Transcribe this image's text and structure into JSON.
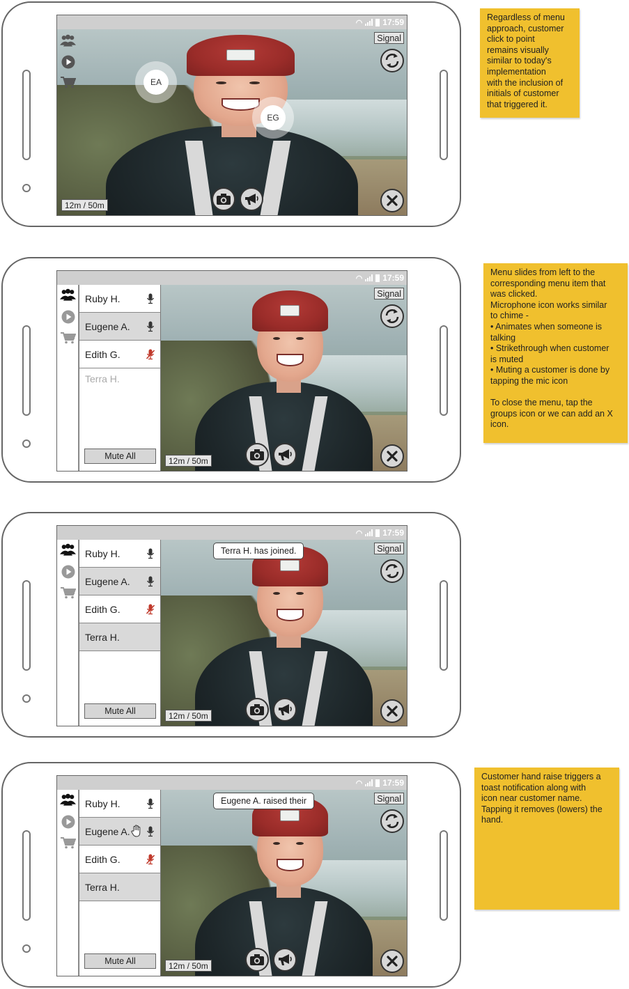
{
  "status_time": "17:59",
  "signal_label": "Signal",
  "timer_label": "12m / 50m",
  "mute_all_label": "Mute All",
  "icons": {
    "groups": "groups-icon",
    "play": "play-icon",
    "cart": "cart-icon",
    "refresh": "refresh-icon",
    "close": "close-icon",
    "camera": "camera-icon",
    "megaphone": "megaphone-icon",
    "mic": "microphone-icon",
    "mic_muted": "microphone-muted-icon",
    "hand": "hand-raise-icon"
  },
  "frame1": {
    "bubbles": [
      "EA",
      "EG"
    ]
  },
  "frame2": {
    "participants": [
      {
        "name": "Ruby H."
      },
      {
        "name": "Eugene A."
      },
      {
        "name": "Edith G."
      },
      {
        "name": "Terra H."
      }
    ]
  },
  "frame3": {
    "toast": "Terra H. has joined.",
    "participants": [
      {
        "name": "Ruby H."
      },
      {
        "name": "Eugene A."
      },
      {
        "name": "Edith G."
      },
      {
        "name": "Terra H."
      }
    ]
  },
  "frame4": {
    "toast": "Eugene A. raised their",
    "participants": [
      {
        "name": "Ruby H."
      },
      {
        "name": "Eugene A."
      },
      {
        "name": "Edith G."
      },
      {
        "name": "Terra H."
      }
    ]
  },
  "notes": {
    "note1": "Regardless of menu\napproach, customer\nclick to point\nremains visually\nsimilar to today's\nimplementation\nwith the inclusion of\ninitials of customer\nthat triggered it.",
    "note2": "Menu slides from left to the\ncorresponding menu item that\nwas clicked.\nMicrophone icon works similar\nto chime -\n• Animates when someone is\ntalking\n• Strikethrough when customer\nis muted\n• Muting a customer is done by\ntapping the mic icon\n\nTo close the menu, tap the\ngroups icon or we can add an X\nicon.",
    "note3": "Customer hand raise triggers a\ntoast notification along with\nicon near customer name.\nTapping it removes (lowers) the\nhand."
  },
  "colors": {
    "note_yellow": "#f0c02e",
    "mic_muted_red": "#c0392b"
  }
}
